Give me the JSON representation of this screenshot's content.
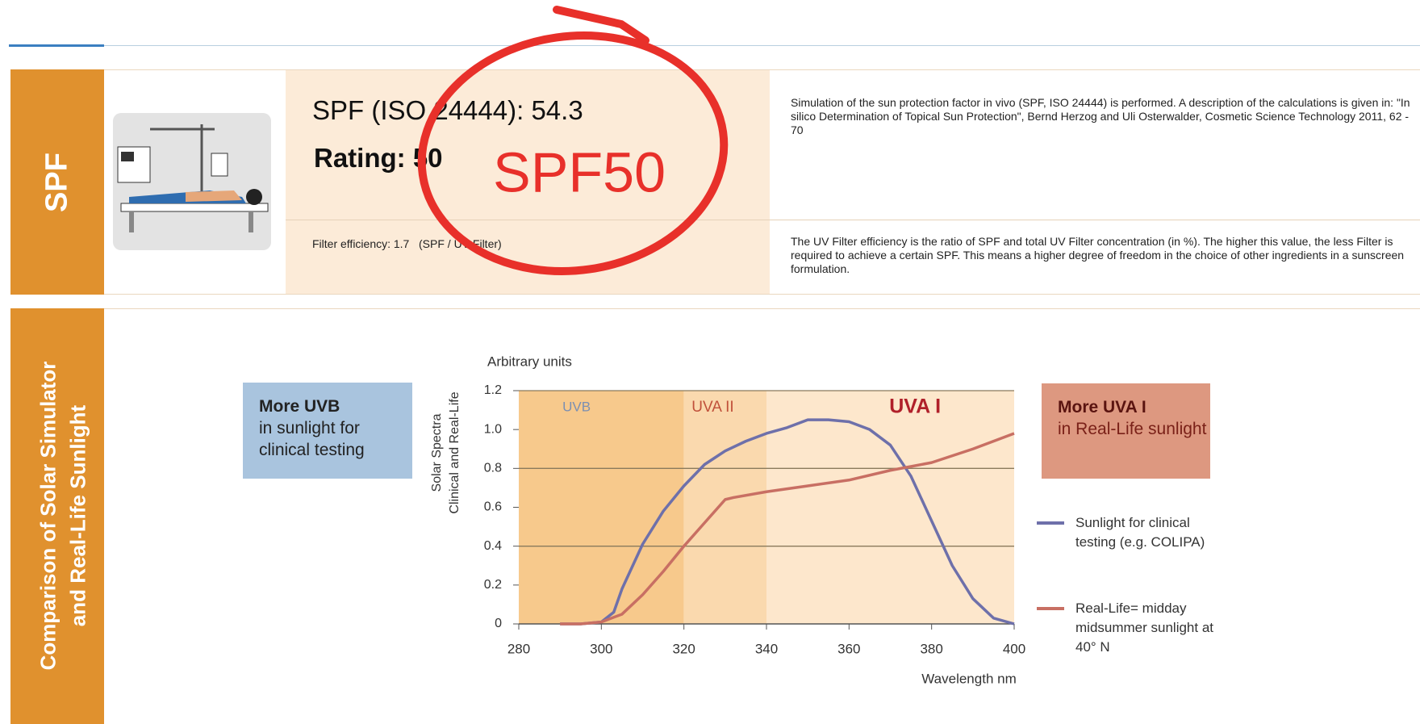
{
  "spf_section": {
    "label": "SPF",
    "spf_line": "SPF (ISO 24444): 54.3",
    "rating": "Rating: 50",
    "filter_efficiency": "Filter efficiency: 1.7   (SPF / UV Filter)",
    "description": "Simulation of the sun protection factor in vivo (SPF, ISO 24444) is performed. A description of the calculations is given in: \"In silico Determination of Topical Sun Protection\", Bernd Herzog and Uli Osterwalder, Cosmetic Science Technology 2011, 62 - 70",
    "efficiency_note": "The UV Filter efficiency is the ratio of SPF and total UV Filter concentration (in %). The higher this value, the less Filter is required to achieve a certain SPF. This means a higher degree of freedom in the choice of other ingredients in a sunscreen formulation."
  },
  "annotation": "SPF50",
  "comparison_section": {
    "label_lines": [
      "Comparison of Solar Simulator",
      "and Real-Life Sunlight"
    ],
    "uvb_callout": {
      "title": "More UVB",
      "text": "in sunlight for clinical testing"
    },
    "uva_callout": {
      "title": "More UVA I",
      "text": "in Real-Life sunlight"
    }
  },
  "chart_data": {
    "type": "line",
    "y_unit_label": "Arbitrary units",
    "y_label_lines": [
      "Solar Spectra",
      "Clinical and Real-Life"
    ],
    "x_label": "Wavelength nm",
    "xlim": [
      280,
      400
    ],
    "xticks": [
      280,
      300,
      320,
      340,
      360,
      380,
      400
    ],
    "ylim": [
      0,
      1.2
    ],
    "yticks": [
      0,
      0.2,
      0.4,
      0.6,
      0.8,
      {
        "value": 1,
        "label": "1.0"
      },
      1.2
    ],
    "grid": true,
    "regions": [
      {
        "label": "UVB",
        "range": [
          280,
          320
        ],
        "color": "#f7c98c"
      },
      {
        "label": "UVA II",
        "range": [
          320,
          340
        ],
        "color": "#fad9ae"
      },
      {
        "label": "UVA I",
        "range": [
          340,
          400
        ],
        "color": "#fde7cc"
      }
    ],
    "series": [
      {
        "name": "Sunlight for clinical testing (e.g. COLIPA)",
        "color": "#6e70aa",
        "x": [
          290,
          295,
          300,
          303,
          305,
          310,
          315,
          320,
          325,
          330,
          335,
          340,
          345,
          350,
          355,
          360,
          365,
          370,
          375,
          380,
          385,
          390,
          395,
          400
        ],
        "values": [
          0,
          0,
          0.01,
          0.06,
          0.18,
          0.41,
          0.58,
          0.71,
          0.82,
          0.89,
          0.94,
          0.98,
          1.01,
          1.05,
          1.05,
          1.04,
          1.0,
          0.92,
          0.76,
          0.53,
          0.3,
          0.13,
          0.03,
          0
        ]
      },
      {
        "name": "Real-Life= midday midsummer sunlight at 40°  N",
        "color": "#c86f63",
        "x": [
          290,
          295,
          300,
          305,
          310,
          315,
          320,
          325,
          330,
          332,
          340,
          350,
          360,
          370,
          380,
          390,
          400
        ],
        "values": [
          0,
          0,
          0.01,
          0.05,
          0.15,
          0.27,
          0.4,
          0.52,
          0.64,
          0.65,
          0.68,
          0.71,
          0.74,
          0.79,
          0.83,
          0.9,
          0.98
        ]
      }
    ]
  }
}
